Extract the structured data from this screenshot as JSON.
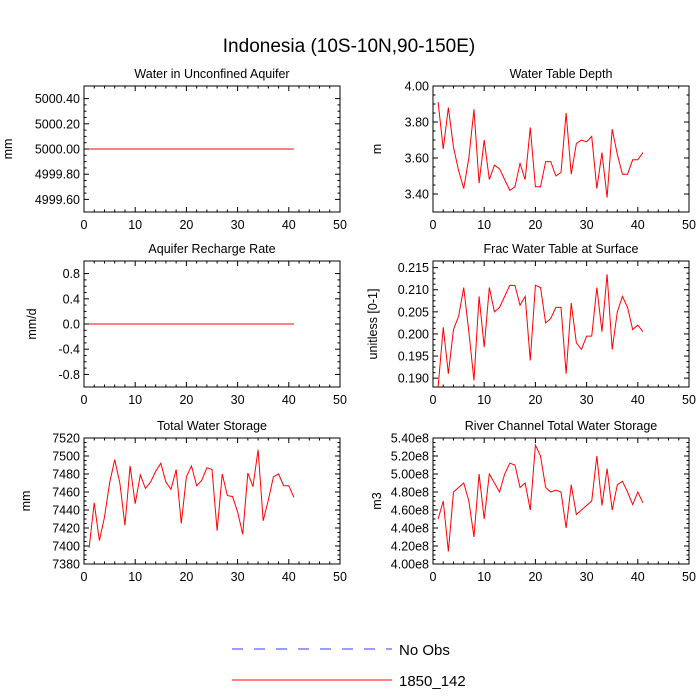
{
  "figure_title": "Indonesia (10S-10N,90-150E)",
  "colors": {
    "model": "#ff0000",
    "obs": "#3b3bff",
    "axis": "#000000"
  },
  "legend": {
    "entries": [
      {
        "label": "No Obs",
        "style": "dashed",
        "color": "#3b3bff"
      },
      {
        "label": "1850_142",
        "style": "solid",
        "color": "#ff0000"
      }
    ]
  },
  "chart_data": [
    {
      "id": "p1",
      "type": "line",
      "title": "Water in Unconfined Aquifer",
      "ylabel": "mm",
      "xlabel": "",
      "xlim": [
        0,
        50
      ],
      "xticks": [
        "0",
        "10",
        "20",
        "30",
        "40",
        "50"
      ],
      "ylim": [
        4999.5,
        5000.5
      ],
      "yticks": [
        {
          "v": 4999.6,
          "label": "4999.60"
        },
        {
          "v": 4999.8,
          "label": "4999.80"
        },
        {
          "v": 5000.0,
          "label": "5000.00"
        },
        {
          "v": 5000.2,
          "label": "5000.20"
        },
        {
          "v": 5000.4,
          "label": "5000.40"
        }
      ],
      "series": [
        {
          "name": "1850_142",
          "x_start": 1,
          "values": [
            5000,
            5000,
            5000,
            5000,
            5000,
            5000,
            5000,
            5000,
            5000,
            5000,
            5000,
            5000,
            5000,
            5000,
            5000,
            5000,
            5000,
            5000,
            5000,
            5000,
            5000,
            5000,
            5000,
            5000,
            5000,
            5000,
            5000,
            5000,
            5000,
            5000,
            5000,
            5000,
            5000,
            5000,
            5000,
            5000,
            5000,
            5000,
            5000,
            5000,
            5000
          ]
        }
      ]
    },
    {
      "id": "p2",
      "type": "line",
      "title": "Water Table Depth",
      "ylabel": "m",
      "xlabel": "",
      "xlim": [
        0,
        50
      ],
      "xticks": [
        "0",
        "10",
        "20",
        "30",
        "40",
        "50"
      ],
      "ylim": [
        3.3,
        4.0
      ],
      "yticks": [
        {
          "v": 3.4,
          "label": "3.40"
        },
        {
          "v": 3.6,
          "label": "3.60"
        },
        {
          "v": 3.8,
          "label": "3.80"
        },
        {
          "v": 4.0,
          "label": "4.00"
        }
      ],
      "series": [
        {
          "name": "1850_142",
          "x_start": 1,
          "values": [
            3.91,
            3.65,
            3.88,
            3.66,
            3.53,
            3.43,
            3.6,
            3.87,
            3.46,
            3.7,
            3.48,
            3.56,
            3.54,
            3.48,
            3.42,
            3.44,
            3.57,
            3.48,
            3.77,
            3.44,
            3.44,
            3.58,
            3.58,
            3.5,
            3.52,
            3.85,
            3.51,
            3.68,
            3.7,
            3.69,
            3.72,
            3.43,
            3.63,
            3.38,
            3.76,
            3.62,
            3.51,
            3.51,
            3.59,
            3.59,
            3.63
          ]
        }
      ]
    },
    {
      "id": "p3",
      "type": "line",
      "title": "Aquifer Recharge Rate",
      "ylabel": "mm/d",
      "xlabel": "",
      "xlim": [
        0,
        50
      ],
      "xticks": [
        "0",
        "10",
        "20",
        "30",
        "40",
        "50"
      ],
      "ylim": [
        -1.0,
        1.0
      ],
      "yticks": [
        {
          "v": -0.8,
          "label": "-0.8"
        },
        {
          "v": -0.4,
          "label": "-0.4"
        },
        {
          "v": 0.0,
          "label": "0.0"
        },
        {
          "v": 0.4,
          "label": "0.4"
        },
        {
          "v": 0.8,
          "label": "0.8"
        }
      ],
      "series": [
        {
          "name": "1850_142",
          "x_start": 1,
          "values": [
            0,
            0,
            0,
            0,
            0,
            0,
            0,
            0,
            0,
            0,
            0,
            0,
            0,
            0,
            0,
            0,
            0,
            0,
            0,
            0,
            0,
            0,
            0,
            0,
            0,
            0,
            0,
            0,
            0,
            0,
            0,
            0,
            0,
            0,
            0,
            0,
            0,
            0,
            0,
            0,
            0
          ]
        }
      ]
    },
    {
      "id": "p4",
      "type": "line",
      "title": "Frac Water Table at Surface",
      "ylabel": "unitless [0-1]",
      "xlabel": "",
      "xlim": [
        0,
        50
      ],
      "xticks": [
        "0",
        "10",
        "20",
        "30",
        "40",
        "50"
      ],
      "ylim": [
        0.188,
        0.2165
      ],
      "yticks": [
        {
          "v": 0.19,
          "label": "0.190"
        },
        {
          "v": 0.195,
          "label": "0.195"
        },
        {
          "v": 0.2,
          "label": "0.200"
        },
        {
          "v": 0.205,
          "label": "0.205"
        },
        {
          "v": 0.21,
          "label": "0.210"
        },
        {
          "v": 0.215,
          "label": "0.215"
        }
      ],
      "series": [
        {
          "name": "1850_142",
          "x_start": 1,
          "values": [
            0.188,
            0.2015,
            0.191,
            0.201,
            0.204,
            0.2105,
            0.2005,
            0.1895,
            0.2085,
            0.197,
            0.2105,
            0.205,
            0.206,
            0.2085,
            0.211,
            0.211,
            0.2065,
            0.2085,
            0.194,
            0.211,
            0.2105,
            0.2025,
            0.2035,
            0.206,
            0.206,
            0.191,
            0.207,
            0.198,
            0.1965,
            0.1995,
            0.1995,
            0.2105,
            0.2005,
            0.2135,
            0.1965,
            0.205,
            0.2085,
            0.206,
            0.201,
            0.202,
            0.2005
          ]
        }
      ]
    },
    {
      "id": "p5",
      "type": "line",
      "title": "Total Water Storage",
      "ylabel": "mm",
      "xlabel": "",
      "xlim": [
        0,
        50
      ],
      "xticks": [
        "0",
        "10",
        "20",
        "30",
        "40",
        "50"
      ],
      "ylim": [
        7380,
        7520
      ],
      "yticks": [
        {
          "v": 7380,
          "label": "7380"
        },
        {
          "v": 7400,
          "label": "7400"
        },
        {
          "v": 7420,
          "label": "7420"
        },
        {
          "v": 7440,
          "label": "7440"
        },
        {
          "v": 7460,
          "label": "7460"
        },
        {
          "v": 7480,
          "label": "7480"
        },
        {
          "v": 7500,
          "label": "7500"
        },
        {
          "v": 7520,
          "label": "7520"
        }
      ],
      "series": [
        {
          "name": "1850_142",
          "x_start": 1,
          "values": [
            7398,
            7448,
            7406,
            7432,
            7470,
            7496,
            7470,
            7423,
            7489,
            7447,
            7479,
            7464,
            7471,
            7483,
            7492,
            7471,
            7463,
            7485,
            7425,
            7477,
            7489,
            7467,
            7473,
            7487,
            7485,
            7417,
            7480,
            7456,
            7455,
            7438,
            7413,
            7481,
            7466,
            7507,
            7428,
            7451,
            7477,
            7480,
            7467,
            7467,
            7454
          ]
        }
      ]
    },
    {
      "id": "p6",
      "type": "line",
      "title": "River Channel Total Water Storage",
      "ylabel": "m3",
      "xlabel": "",
      "xlim": [
        0,
        50
      ],
      "xticks": [
        "0",
        "10",
        "20",
        "30",
        "40",
        "50"
      ],
      "ylim": [
        400000000.0,
        540000000.0
      ],
      "yticks": [
        {
          "v": 400000000.0,
          "label": "4.00e8"
        },
        {
          "v": 420000000.0,
          "label": "4.20e8"
        },
        {
          "v": 440000000.0,
          "label": "4.40e8"
        },
        {
          "v": 460000000.0,
          "label": "4.60e8"
        },
        {
          "v": 480000000.0,
          "label": "4.80e8"
        },
        {
          "v": 500000000.0,
          "label": "5.00e8"
        },
        {
          "v": 520000000.0,
          "label": "5.20e8"
        },
        {
          "v": 540000000.0,
          "label": "5.40e8"
        }
      ],
      "series": [
        {
          "name": "1850_142",
          "x_start": 1,
          "values": [
            450000000.0,
            470000000.0,
            414000000.0,
            480000000.0,
            485000000.0,
            490000000.0,
            470000000.0,
            430000000.0,
            500000000.0,
            450000000.0,
            500000000.0,
            490000000.0,
            480000000.0,
            500000000.0,
            512000000.0,
            510000000.0,
            485000000.0,
            490000000.0,
            460000000.0,
            532000000.0,
            520000000.0,
            485000000.0,
            480000000.0,
            482000000.0,
            480000000.0,
            440000000.0,
            488000000.0,
            455000000.0,
            460000000.0,
            465000000.0,
            470000000.0,
            520000000.0,
            465000000.0,
            506000000.0,
            460000000.0,
            488000000.0,
            492000000.0,
            480000000.0,
            466000000.0,
            480000000.0,
            468000000.0
          ]
        }
      ]
    }
  ]
}
